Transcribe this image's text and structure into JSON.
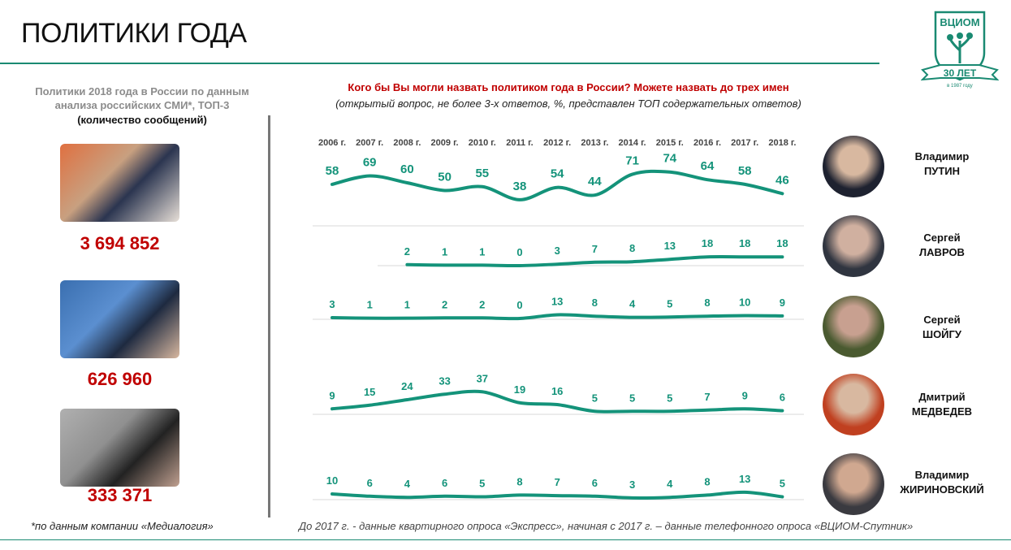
{
  "header": {
    "title": "ПОЛИТИКИ ГОДА",
    "logo_text": "ВЦИОМ",
    "logo_years": "30 ЛЕТ",
    "logo_founded": "Основан в 1987 году"
  },
  "left": {
    "heading": "Политики 2018 года в России по данным анализа российских СМИ*, ТОП-3",
    "subheading": "(количество сообщений)",
    "items": [
      {
        "value": "3 694 852"
      },
      {
        "value": "626 960"
      },
      {
        "value": "333 371"
      }
    ],
    "footnote": "*по данным компании «Медиалогия»"
  },
  "colors": {
    "accent": "#1a8a72",
    "line": "#14937a",
    "red": "#c00000"
  },
  "chart_data": {
    "type": "line",
    "title": "Кого бы Вы могли назвать политиком года в России? Можете назвать до трех имен",
    "subtitle": "(открытый вопрос, не более 3-х ответов, %, представлен ТОП содержательных ответов)",
    "categories": [
      "2006 г.",
      "2007 г.",
      "2008 г.",
      "2009 г.",
      "2010 г.",
      "2011 г.",
      "2012 г.",
      "2013 г.",
      "2014 г.",
      "2015 г.",
      "2016 г.",
      "2017 г.",
      "2018 г."
    ],
    "series": [
      {
        "first": "Владимир",
        "last": "ПУТИН",
        "values": [
          58,
          69,
          60,
          50,
          55,
          38,
          54,
          44,
          71,
          74,
          64,
          58,
          46
        ]
      },
      {
        "first": "Сергей",
        "last": "ЛАВРОВ",
        "values": [
          null,
          null,
          2,
          1,
          1,
          0,
          3,
          7,
          8,
          13,
          18,
          18,
          18
        ]
      },
      {
        "first": "Сергей",
        "last": "ШОЙГУ",
        "values": [
          3,
          1,
          1,
          2,
          2,
          0,
          13,
          8,
          4,
          5,
          8,
          10,
          9
        ]
      },
      {
        "first": "Дмитрий",
        "last": "МЕДВЕДЕВ",
        "values": [
          9,
          15,
          24,
          33,
          37,
          19,
          16,
          5,
          5,
          5,
          7,
          9,
          6
        ]
      },
      {
        "first": "Владимир",
        "last": "ЖИРИНОВСКИЙ",
        "values": [
          10,
          6,
          4,
          6,
          5,
          8,
          7,
          6,
          3,
          4,
          8,
          13,
          5
        ]
      }
    ],
    "footnote": "До 2017 г. - данные квартирного опроса «Экспресс», начиная с 2017 г. – данные телефонного опроса «ВЦИОМ-Спутник»"
  }
}
